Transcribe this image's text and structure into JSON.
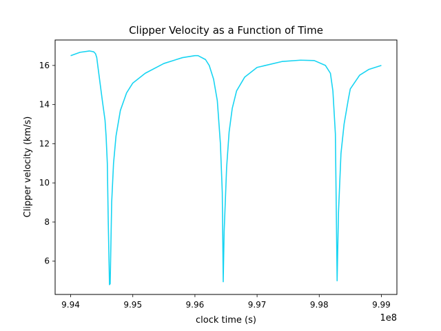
{
  "chart_data": {
    "type": "line",
    "title": "Clipper Velocity as a Function of Time",
    "xlabel": "clock time (s)",
    "ylabel": "Clipper velocity (km/s)",
    "x_offset_label": "1e8",
    "xlim": [
      9.9375,
      9.9925
    ],
    "ylim": [
      4.3,
      17.3
    ],
    "x_ticks": [
      9.94,
      9.95,
      9.96,
      9.97,
      9.98,
      9.99
    ],
    "x_tick_labels": [
      "9.94",
      "9.95",
      "9.96",
      "9.97",
      "9.98",
      "9.99"
    ],
    "y_ticks": [
      6,
      8,
      10,
      12,
      14,
      16
    ],
    "y_tick_labels": [
      "6",
      "8",
      "10",
      "12",
      "14",
      "16"
    ],
    "grid": false,
    "series": [
      {
        "color": "#17d4f2",
        "x": [
          9.94,
          9.9415,
          9.943,
          9.9437,
          9.944,
          9.9442,
          9.9444,
          9.9451,
          9.94553,
          9.9457,
          9.9459,
          9.94605,
          9.94625,
          9.94636,
          9.9466,
          9.9469,
          9.9473,
          9.948,
          9.949,
          9.95,
          9.952,
          9.955,
          9.958,
          9.96,
          9.9605,
          9.9617,
          9.9623,
          9.963,
          9.9636,
          9.9641,
          9.9644,
          9.96455,
          9.9647,
          9.9651,
          9.9655,
          9.966,
          9.9667,
          9.968,
          9.97,
          9.974,
          9.977,
          9.9792,
          9.981,
          9.9818,
          9.9822,
          9.9826,
          9.98288,
          9.9831,
          9.9835,
          9.984,
          9.9847,
          9.985,
          9.9865,
          9.988,
          9.99
        ],
        "y": [
          16.5,
          16.67,
          16.74,
          16.7,
          16.6,
          16.4,
          15.9,
          14.2,
          13.2,
          12.4,
          11.0,
          8.0,
          4.8,
          4.85,
          9.0,
          11.0,
          12.4,
          13.7,
          14.6,
          15.1,
          15.6,
          16.1,
          16.4,
          16.5,
          16.5,
          16.3,
          16.0,
          15.3,
          14.2,
          12.0,
          9.5,
          4.95,
          7.5,
          10.8,
          12.6,
          13.8,
          14.7,
          15.4,
          15.9,
          16.2,
          16.27,
          16.25,
          16.0,
          15.6,
          14.7,
          12.5,
          5.0,
          8.5,
          11.5,
          13.0,
          14.3,
          14.8,
          15.5,
          15.8,
          16.0
        ]
      }
    ]
  }
}
